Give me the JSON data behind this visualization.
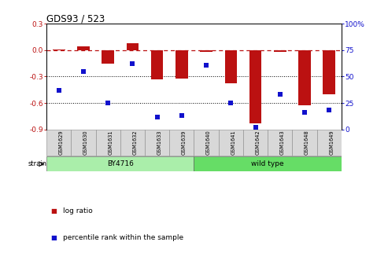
{
  "title": "GDS93 / 523",
  "samples": [
    "GSM1629",
    "GSM1630",
    "GSM1631",
    "GSM1632",
    "GSM1633",
    "GSM1639",
    "GSM1640",
    "GSM1641",
    "GSM1642",
    "GSM1643",
    "GSM1648",
    "GSM1649"
  ],
  "log_ratio": [
    0.01,
    0.04,
    -0.15,
    0.08,
    -0.33,
    -0.32,
    -0.02,
    -0.38,
    -0.83,
    -0.02,
    -0.63,
    -0.5
  ],
  "percentile": [
    37,
    55,
    25,
    62,
    12,
    13,
    61,
    25,
    2,
    33,
    16,
    18
  ],
  "strain_groups": [
    {
      "label": "BY4716",
      "start": 0,
      "end": 5,
      "color": "#aaeeaa"
    },
    {
      "label": "wild type",
      "start": 6,
      "end": 11,
      "color": "#66dd66"
    }
  ],
  "bar_color": "#bb1111",
  "dot_color": "#1111cc",
  "left_ylim": [
    -0.9,
    0.3
  ],
  "right_ylim": [
    0,
    100
  ],
  "left_yticks": [
    -0.9,
    -0.6,
    -0.3,
    0.0,
    0.3
  ],
  "right_yticks": [
    0,
    25,
    50,
    75,
    100
  ],
  "hline_y": 0.0,
  "dotted_lines": [
    -0.3,
    -0.6
  ],
  "background_color": "#ffffff",
  "bar_width": 0.5
}
